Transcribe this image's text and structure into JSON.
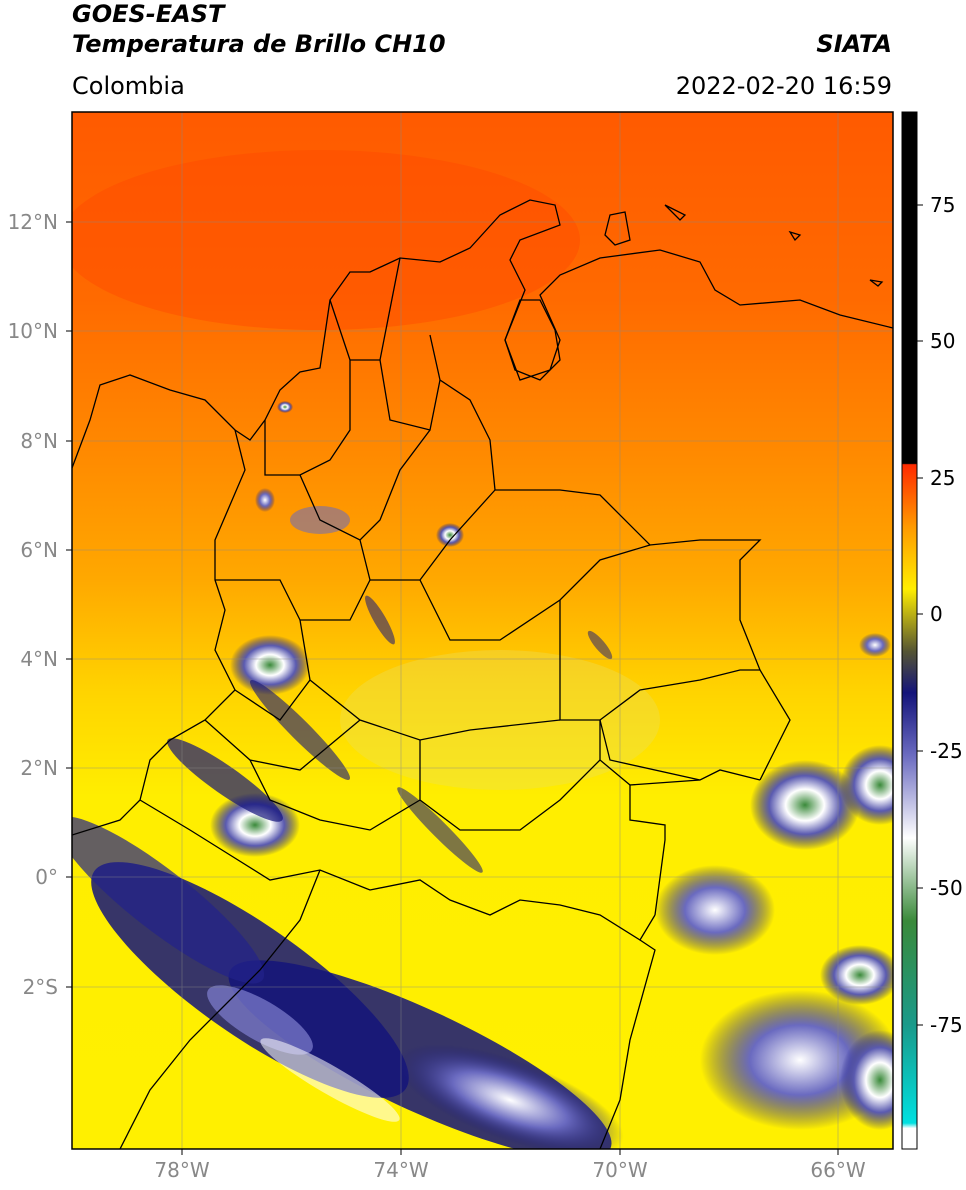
{
  "header": {
    "satellite": "GOES-EAST",
    "product": "Temperatura de Brillo CH10",
    "organization": "SIATA",
    "region": "Colombia",
    "timestamp": "2022-02-20 16:59"
  },
  "axes": {
    "latitude_labels": [
      "12°N",
      "10°N",
      "8°N",
      "6°N",
      "4°N",
      "2°N",
      "0°",
      "2°S"
    ],
    "longitude_labels": [
      "78°W",
      "74°W",
      "70°W",
      "66°W"
    ],
    "colorbar_labels": [
      "75",
      "50",
      "25",
      "0",
      "-25",
      "-50",
      "-75"
    ]
  },
  "colors": {
    "warm_ocean": "#ff5a00",
    "orange": "#ff9a00",
    "yellow": "#ffee00",
    "cloud_blue": "#1a1a80",
    "cloud_white": "#ffffff",
    "cloud_green": "#3a8a3a",
    "cyan": "#00e0e0"
  }
}
